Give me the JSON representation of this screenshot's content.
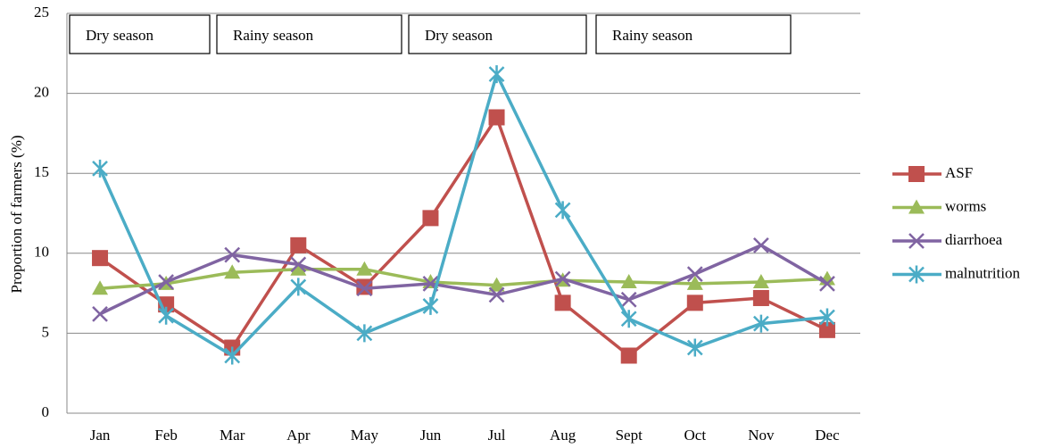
{
  "chart_data": {
    "type": "line",
    "y_label": "Proportion of farmers (%)",
    "annotations": [
      "Dry season",
      "Rainy season",
      "Dry season",
      "Rainy season"
    ],
    "categories": [
      "Jan",
      "Feb",
      "Mar",
      "Apr",
      "May",
      "Jun",
      "Jul",
      "Aug",
      "Sept",
      "Oct",
      "Nov",
      "Dec"
    ],
    "series": [
      {
        "name": "ASF",
        "color": "#c0504d",
        "marker": "square",
        "values": [
          9.7,
          6.8,
          4.1,
          10.5,
          7.9,
          12.2,
          18.5,
          6.9,
          3.6,
          6.9,
          7.2,
          5.2
        ]
      },
      {
        "name": "worms",
        "color": "#9bbb59",
        "marker": "triangle",
        "values": [
          7.8,
          8.1,
          8.8,
          9.0,
          9.0,
          8.2,
          8.0,
          8.3,
          8.2,
          8.1,
          8.2,
          8.4
        ]
      },
      {
        "name": "diarrhoea",
        "color": "#8064a2",
        "marker": "x",
        "values": [
          6.2,
          8.2,
          9.9,
          9.3,
          7.8,
          8.1,
          7.4,
          8.4,
          7.1,
          8.7,
          10.5,
          8.1
        ]
      },
      {
        "name": "malnutrition",
        "color": "#4bacc6",
        "marker": "asterisk",
        "values": [
          15.3,
          6.1,
          3.6,
          7.9,
          5.0,
          6.7,
          21.2,
          12.7,
          5.9,
          4.1,
          5.6,
          6.0
        ]
      }
    ],
    "ylim": [
      0,
      25
    ],
    "yticks": [
      0,
      5,
      10,
      15,
      20,
      25
    ],
    "grid": true,
    "legend": "right"
  }
}
